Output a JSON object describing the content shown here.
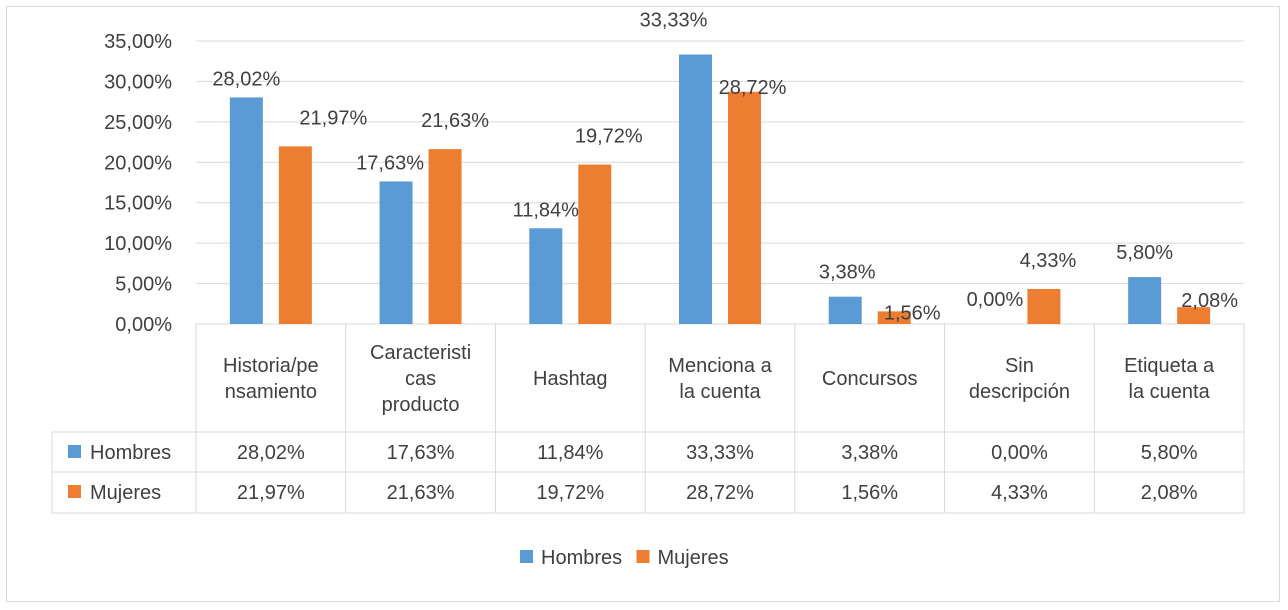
{
  "chart_data": {
    "type": "bar",
    "categories": [
      [
        "Historia/pe",
        "nsamiento"
      ],
      [
        "Caracteristi",
        "cas",
        "producto"
      ],
      [
        "Hashtag"
      ],
      [
        "Menciona a",
        "la cuenta"
      ],
      [
        "Concursos"
      ],
      [
        "Sin",
        "descripción"
      ],
      [
        "Etiqueta a",
        "la cuenta"
      ]
    ],
    "series": [
      {
        "name": "Hombres",
        "color": "#5b9bd5",
        "values": [
          28.02,
          17.63,
          11.84,
          33.33,
          3.38,
          0.0,
          5.8
        ],
        "labels": [
          "28,02%",
          "17,63%",
          "11,84%",
          "33,33%",
          "3,38%",
          "0,00%",
          "5,80%"
        ]
      },
      {
        "name": "Mujeres",
        "color": "#ed7d31",
        "values": [
          21.97,
          21.63,
          19.72,
          28.72,
          1.56,
          4.33,
          2.08
        ],
        "labels": [
          "21,97%",
          "21,63%",
          "19,72%",
          "28,72%",
          "1,56%",
          "4,33%",
          "2,08%"
        ]
      }
    ],
    "ylim": [
      0,
      35
    ],
    "yticks": [
      0,
      5,
      10,
      15,
      20,
      25,
      30,
      35
    ],
    "ytick_labels": [
      "0,00%",
      "5,00%",
      "10,00%",
      "15,00%",
      "20,00%",
      "25,00%",
      "30,00%",
      "35,00%"
    ],
    "grid": true,
    "data_table": true,
    "legend": "bottom",
    "title": "",
    "xlabel": "",
    "ylabel": ""
  }
}
